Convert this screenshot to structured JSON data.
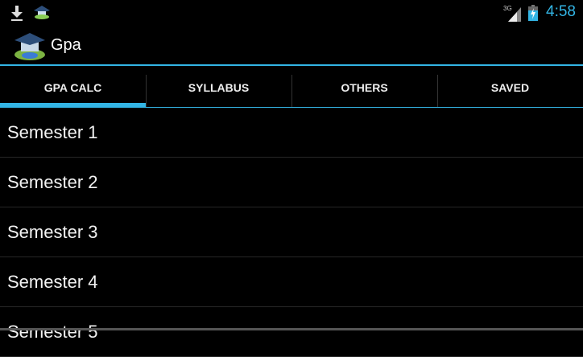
{
  "status_bar": {
    "time": "4:58",
    "network": "3G",
    "time_color": "#33b5e5",
    "icons": [
      "download-icon",
      "app-notification-icon",
      "signal-3g-icon",
      "battery-charging-icon"
    ]
  },
  "action_bar": {
    "title": "Gpa",
    "accent": "#33b5e5"
  },
  "tabs": [
    {
      "label": "GPA CALC",
      "active": true
    },
    {
      "label": "SYLLABUS",
      "active": false
    },
    {
      "label": "OTHERS",
      "active": false
    },
    {
      "label": "SAVED",
      "active": false
    }
  ],
  "semesters": [
    "Semester 1",
    "Semester 2",
    "Semester 3",
    "Semester 4",
    "Semester 5"
  ]
}
